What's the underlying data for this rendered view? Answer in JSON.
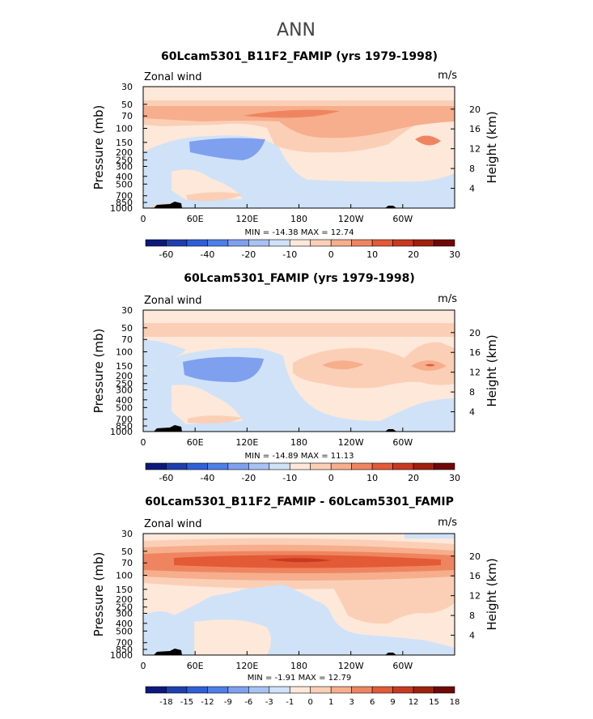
{
  "page_title": "ANN",
  "chart_data": [
    {
      "type": "heatmap",
      "title": "60Lcam5301_B11F2_FAMIP (yrs 1979-1998)",
      "left_label": "Zonal wind",
      "units": "m/s",
      "ylabel": "Pressure (mb)",
      "y2label": "Height (km)",
      "x_ticks": [
        "0",
        "60E",
        "120E",
        "180",
        "120W",
        "60W"
      ],
      "y_ticks": [
        "30",
        "50",
        "70",
        "100",
        "150",
        "200",
        "250",
        "300",
        "400",
        "500",
        "700",
        "850",
        "1000"
      ],
      "y2_ticks": [
        "20",
        "16",
        "12",
        "8",
        "4"
      ],
      "stats": "MIN = -14.38   MAX = 12.74",
      "colorbar_labels": [
        "-60",
        "-40",
        "-20",
        "-10",
        "0",
        "10",
        "20",
        "30"
      ]
    },
    {
      "type": "heatmap",
      "title": "60Lcam5301_FAMIP (yrs 1979-1998)",
      "left_label": "Zonal wind",
      "units": "m/s",
      "ylabel": "Pressure (mb)",
      "y2label": "Height (km)",
      "x_ticks": [
        "0",
        "60E",
        "120E",
        "180",
        "120W",
        "60W"
      ],
      "y_ticks": [
        "30",
        "50",
        "70",
        "100",
        "150",
        "200",
        "250",
        "300",
        "400",
        "500",
        "700",
        "850",
        "1000"
      ],
      "y2_ticks": [
        "20",
        "16",
        "12",
        "8",
        "4"
      ],
      "stats": "MIN = -14.89   MAX = 11.13",
      "colorbar_labels": [
        "-60",
        "-40",
        "-20",
        "-10",
        "0",
        "10",
        "20",
        "30"
      ]
    },
    {
      "type": "heatmap",
      "title": "60Lcam5301_B11F2_FAMIP - 60Lcam5301_FAMIP",
      "left_label": "Zonal wind",
      "units": "m/s",
      "ylabel": "Pressure (mb)",
      "y2label": "Height (km)",
      "x_ticks": [
        "0",
        "60E",
        "120E",
        "180",
        "120W",
        "60W"
      ],
      "y_ticks": [
        "30",
        "50",
        "70",
        "100",
        "150",
        "200",
        "250",
        "300",
        "400",
        "500",
        "700",
        "850",
        "1000"
      ],
      "y2_ticks": [
        "20",
        "16",
        "12",
        "8",
        "4"
      ],
      "stats": "MIN = -1.91   MAX = 12.79",
      "colorbar_labels": [
        "-18",
        "-15",
        "-12",
        "-9",
        "-6",
        "-3",
        "-1",
        "0",
        "1",
        "3",
        "6",
        "9",
        "12",
        "15",
        "18"
      ]
    }
  ],
  "colors": {
    "palette": [
      "#0b1a7a",
      "#1f3fb0",
      "#2f5fd8",
      "#4e7ee8",
      "#7ea0ef",
      "#a8c2f3",
      "#cfe2f8",
      "#fde8da",
      "#fbcfb6",
      "#f6ae8c",
      "#ef8560",
      "#e35a37",
      "#c73a20",
      "#a0200e",
      "#700808"
    ]
  }
}
